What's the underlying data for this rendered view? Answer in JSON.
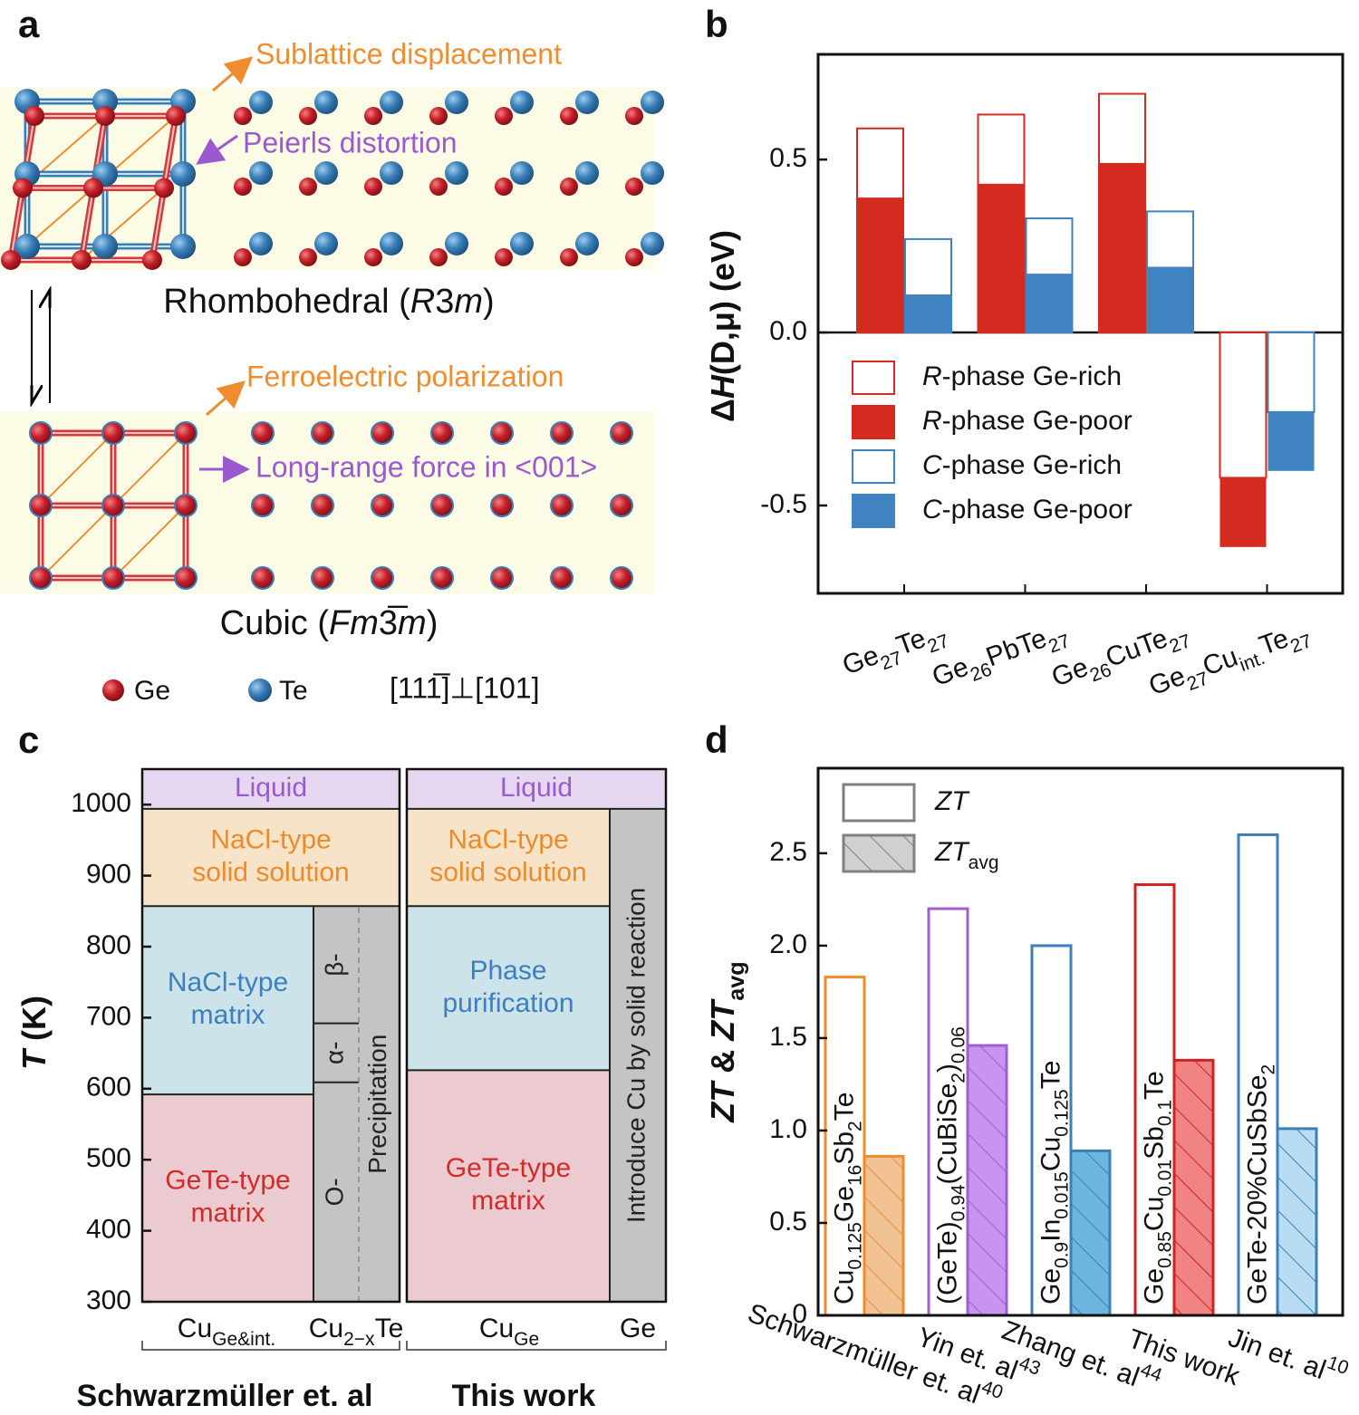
{
  "panel_labels": [
    "a",
    "b",
    "c",
    "d"
  ],
  "diagram": {
    "annotations": [
      {
        "text": "Sublattice displacement",
        "color": "#f08c2e"
      },
      {
        "text": "Peierls distortion",
        "color": "#9b59d0"
      },
      {
        "text": "Ferroelectric polarization",
        "color": "#f08c2e"
      },
      {
        "text": "Long-range force in <001>",
        "color": "#9b59d0"
      }
    ],
    "phases": [
      [
        {
          "t": "Rhombohedral ("
        },
        {
          "i": "R"
        },
        {
          "t": "3"
        },
        {
          "i": "m"
        },
        {
          "t": ")"
        }
      ],
      [
        {
          "t": "Cubic ("
        },
        {
          "i": "Fm"
        },
        {
          "t": "3̅"
        },
        {
          "i": "m"
        },
        {
          "t": ")"
        }
      ]
    ],
    "legend": [
      "Ge",
      "Te"
    ],
    "direction": "[111̅]⊥[101]"
  },
  "chart_data": [
    {
      "type": "phase",
      "ylabel": [
        {
          "i": "T"
        },
        {
          "t": " (K)"
        }
      ],
      "ylim": [
        300,
        1050
      ],
      "yticks": [
        300,
        400,
        500,
        600,
        700,
        800,
        900,
        1000
      ],
      "regions": [
        {
          "lines": [
            "Liquid"
          ],
          "range": [
            994,
            1050
          ],
          "color": "#e6d8f0",
          "text_color": "#9b59d0"
        },
        {
          "lines": [
            "NaCl-type",
            "solid solution"
          ],
          "range": [
            857,
            994
          ],
          "color": "#f7e3c8",
          "text_color": "#ee8a2a"
        },
        {
          "lines": [
            "NaCl-type",
            "matrix"
          ],
          "range": [
            592,
            857
          ],
          "color": "#cce3ea",
          "text_color": "#3c7fc0"
        },
        {
          "lines": [
            "GeTe-type",
            "matrix"
          ],
          "range": [
            300,
            592
          ],
          "color": "#ebcbcf",
          "text_color": "#d42a2a"
        },
        {
          "lines": [
            "O-"
          ],
          "range": [
            300,
            609
          ],
          "color": "#c4c4c4",
          "text_color": "#222222"
        },
        {
          "lines": [
            "α-"
          ],
          "range": [
            609,
            692
          ],
          "color": "#c4c4c4",
          "text_color": "#222222"
        },
        {
          "lines": [
            "β-"
          ],
          "range": [
            692,
            857
          ],
          "color": "#c4c4c4",
          "text_color": "#222222"
        },
        {
          "lines": [
            "Precipitation"
          ],
          "range": [
            300,
            857
          ],
          "color": "#c4c4c4",
          "text_color": "#222222"
        },
        {
          "lines": [
            "Liquid"
          ],
          "range": [
            994,
            1050
          ],
          "color": "#e6d8f0",
          "text_color": "#9b59d0"
        },
        {
          "lines": [
            "NaCl-type",
            "solid solution"
          ],
          "range": [
            857,
            994
          ],
          "color": "#f7e3c8",
          "text_color": "#ee8a2a"
        },
        {
          "lines": [
            "Phase",
            "purification"
          ],
          "range": [
            626,
            857
          ],
          "color": "#cce3ea",
          "text_color": "#3c7fc0"
        },
        {
          "lines": [
            "GeTe-type",
            "matrix"
          ],
          "range": [
            300,
            626
          ],
          "color": "#ebcbcf",
          "text_color": "#d42a2a"
        },
        {
          "lines": [
            "Introduce Cu by solid reaction"
          ],
          "range": [
            300,
            994
          ],
          "color": "#c4c4c4",
          "text_color": "#222222"
        }
      ],
      "categories": [
        [
          {
            "t": "Cu"
          },
          {
            "sub": "Ge&int."
          }
        ],
        [
          {
            "t": "Cu"
          },
          {
            "sub": "2−x"
          },
          {
            "t": "Te"
          }
        ],
        [
          {
            "t": "Cu"
          },
          {
            "sub": "Ge"
          }
        ],
        [
          {
            "t": "Ge"
          }
        ]
      ],
      "groups": [
        "Schwarzmüller et. al",
        "This work"
      ]
    },
    {
      "type": "bar",
      "overlay": true,
      "zero_line": true,
      "ylabel": [
        {
          "t": "Δ"
        },
        {
          "i": "H"
        },
        {
          "t": "(D,μ) (eV)"
        }
      ],
      "ylim": [
        -0.754,
        0.804
      ],
      "yticks": [
        -0.5,
        {
          "value": 0,
          "label": "0.0"
        },
        0.5
      ],
      "categories": [
        [
          {
            "t": "Ge"
          },
          {
            "sub": "27"
          },
          {
            "t": "Te"
          },
          {
            "sub": "27"
          }
        ],
        [
          {
            "t": "Ge"
          },
          {
            "sub": "26"
          },
          {
            "t": "PbTe"
          },
          {
            "sub": "27"
          }
        ],
        [
          {
            "t": "Ge"
          },
          {
            "sub": "26"
          },
          {
            "t": "CuTe"
          },
          {
            "sub": "27"
          }
        ],
        [
          {
            "t": "Ge"
          },
          {
            "sub": "27"
          },
          {
            "t": "Cu"
          },
          {
            "sub": "int."
          },
          {
            "t": "Te"
          },
          {
            "sub": "27"
          }
        ]
      ],
      "series": [
        {
          "name": [
            {
              "i": "R"
            },
            {
              "t": "-phase Ge-rich"
            }
          ],
          "color": "#d42a20",
          "filled": false,
          "values": [
            0.59,
            0.63,
            0.69,
            -0.42
          ]
        },
        {
          "name": [
            {
              "i": "R"
            },
            {
              "t": "-phase Ge-poor"
            }
          ],
          "color": "#d42a20",
          "filled": true,
          "values": [
            0.39,
            0.43,
            0.49,
            -0.62
          ]
        },
        {
          "name": [
            {
              "i": "C"
            },
            {
              "t": "-phase Ge-rich"
            }
          ],
          "color": "#3f83c0",
          "filled": false,
          "values": [
            0.27,
            0.33,
            0.35,
            -0.23
          ]
        },
        {
          "name": [
            {
              "i": "C"
            },
            {
              "t": "-phase Ge-poor"
            }
          ],
          "color": "#3f83c0",
          "filled": true,
          "values": [
            0.11,
            0.17,
            0.19,
            -0.4
          ]
        }
      ]
    },
    {
      "type": "bar",
      "overlay": false,
      "ylabel": [
        {
          "i": "ZT"
        },
        {
          "t": " & "
        },
        {
          "i": "ZT"
        },
        {
          "sub": "avg"
        }
      ],
      "ylim": [
        0,
        2.96
      ],
      "yticks": [
        0,
        0.5,
        {
          "value": 1,
          "label": "1.0"
        },
        1.5,
        {
          "value": 2,
          "label": "2.0"
        },
        2.5
      ],
      "categories": [
        [
          {
            "t": "Schwarzmüller et. al"
          },
          {
            "sup": "40"
          }
        ],
        [
          {
            "t": "Yin et. al"
          },
          {
            "sup": "43"
          }
        ],
        [
          {
            "t": "Zhang et. al"
          },
          {
            "sup": "44"
          }
        ],
        [
          {
            "t": "This work"
          }
        ],
        [
          {
            "t": "Jin et. al"
          },
          {
            "sup": "10"
          }
        ]
      ],
      "annotations": [
        [
          {
            "t": "Cu"
          },
          {
            "sub": "0.125"
          },
          {
            "t": "Ge"
          },
          {
            "sub": "16"
          },
          {
            "t": "Sb"
          },
          {
            "sub": "2"
          },
          {
            "t": "Te"
          }
        ],
        [
          {
            "t": "(GeTe)"
          },
          {
            "sub": "0.94"
          },
          {
            "t": "(CuBiSe"
          },
          {
            "sub": "2"
          },
          {
            "t": ")"
          },
          {
            "sub": "0.06"
          }
        ],
        [
          {
            "t": "Ge"
          },
          {
            "sub": "0.9"
          },
          {
            "t": "In"
          },
          {
            "sub": "0.015"
          },
          {
            "t": "Cu"
          },
          {
            "sub": "0.125"
          },
          {
            "t": "Te"
          }
        ],
        [
          {
            "t": "Ge"
          },
          {
            "sub": "0.85"
          },
          {
            "t": "Cu"
          },
          {
            "sub": "0.01"
          },
          {
            "t": "Sb"
          },
          {
            "sub": "0.1"
          },
          {
            "t": "Te"
          }
        ],
        [
          {
            "t": "GeTe-20%CuSbSe"
          },
          {
            "sub": "2"
          }
        ]
      ],
      "legend_color": "#808080",
      "series": [
        {
          "name": [
            {
              "i": "ZT"
            }
          ],
          "hatch": false,
          "values": [
            1.83,
            2.2,
            2.0,
            2.33,
            2.6
          ],
          "colors": [
            "#f08c2e",
            "#a05fd0",
            "#3d7fb8",
            "#d42020",
            "#3d7fb8"
          ]
        },
        {
          "name": [
            {
              "i": "ZT"
            },
            {
              "sub": "avg"
            }
          ],
          "hatch": true,
          "values": [
            0.86,
            1.46,
            0.89,
            1.38,
            1.01
          ],
          "colors": [
            "#f0c294",
            "#c994f0",
            "#6cb6e0",
            "#f08484",
            "#b8dcf2"
          ],
          "edgecolors": [
            "#f08c2e",
            "#a05fd0",
            "#3d7fb8",
            "#d42020",
            "#3d7fb8"
          ]
        }
      ]
    }
  ]
}
